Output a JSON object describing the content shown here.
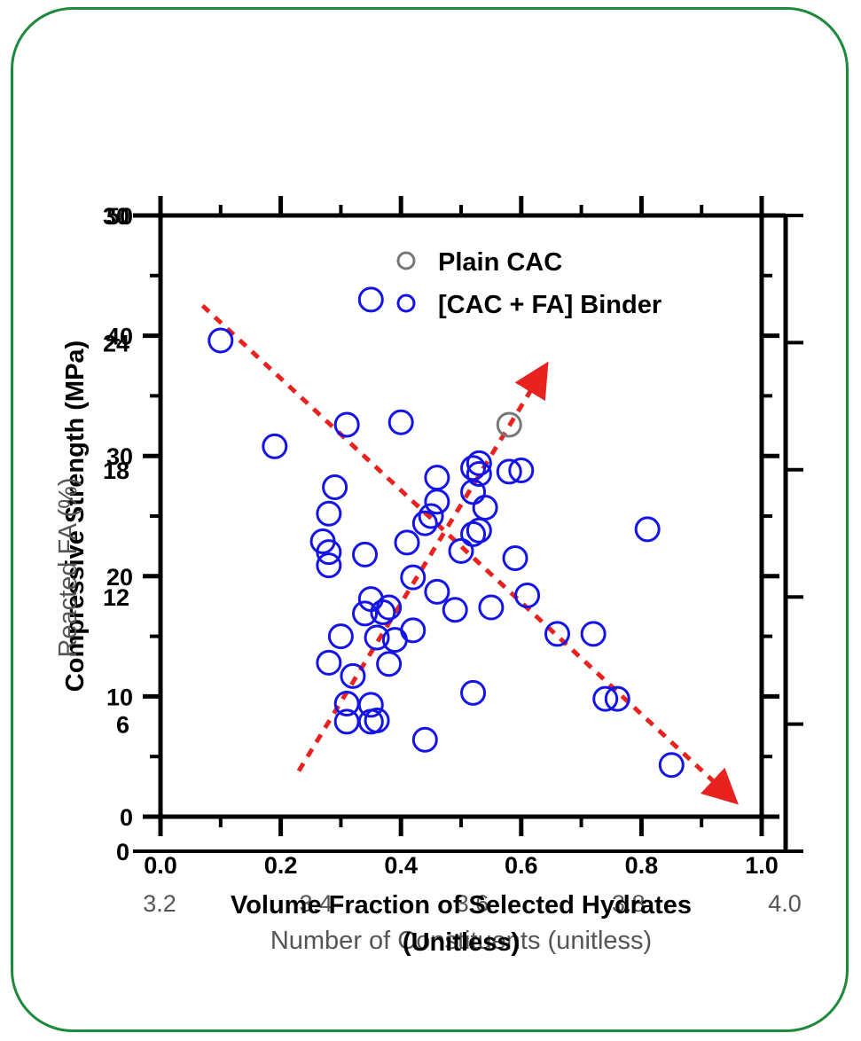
{
  "chart_data": {
    "type": "scatter",
    "bottom_axis": {
      "label": "Volume Fraction of Selected Hydrates",
      "label_line2": "(Unitless)",
      "range": [
        0.0,
        1.0
      ],
      "ticks": [
        "0.0",
        "0.2",
        "0.4",
        "0.6",
        "0.8",
        "1.0"
      ]
    },
    "bottom_axis_secondary": {
      "label": "Number of Constituents (unitless)",
      "range": [
        3.2,
        4.0
      ],
      "ticks": [
        "3.2",
        "3.4",
        "3.6",
        "3.8",
        "4.0"
      ]
    },
    "left_axis": {
      "label": "Compressive Strength (MPa)",
      "range": [
        0,
        50
      ],
      "ticks": [
        "0",
        "10",
        "20",
        "30",
        "40",
        "50"
      ]
    },
    "left_axis_secondary": {
      "label": "Reacted FA (%)",
      "range": [
        0,
        30
      ],
      "ticks": [
        "0",
        "6",
        "12",
        "18",
        "24",
        "30"
      ]
    },
    "legend": {
      "position": "top-center",
      "items": [
        {
          "label": "Plain CAC",
          "color": "#777777"
        },
        {
          "label": "[CAC + FA] Binder",
          "color": "#1414e6"
        }
      ]
    },
    "series": [
      {
        "name": "Plain CAC",
        "color": "#777777",
        "points": [
          [
            0.58,
            32.6
          ]
        ]
      },
      {
        "name": "[CAC + FA] Binder",
        "color": "#1414e6",
        "points": [
          [
            0.1,
            39.6
          ],
          [
            0.19,
            30.8
          ],
          [
            0.31,
            32.6
          ],
          [
            0.4,
            32.8
          ],
          [
            0.35,
            43.0
          ],
          [
            0.29,
            27.4
          ],
          [
            0.28,
            25.2
          ],
          [
            0.27,
            22.9
          ],
          [
            0.28,
            22.0
          ],
          [
            0.28,
            20.9
          ],
          [
            0.34,
            21.8
          ],
          [
            0.3,
            15.0
          ],
          [
            0.28,
            12.8
          ],
          [
            0.32,
            11.7
          ],
          [
            0.31,
            9.4
          ],
          [
            0.31,
            7.9
          ],
          [
            0.35,
            9.3
          ],
          [
            0.35,
            7.9
          ],
          [
            0.36,
            8.0
          ],
          [
            0.44,
            6.4
          ],
          [
            0.34,
            16.9
          ],
          [
            0.35,
            18.1
          ],
          [
            0.37,
            17.0
          ],
          [
            0.38,
            17.4
          ],
          [
            0.36,
            14.9
          ],
          [
            0.38,
            12.7
          ],
          [
            0.39,
            14.7
          ],
          [
            0.42,
            15.5
          ],
          [
            0.41,
            22.8
          ],
          [
            0.42,
            19.9
          ],
          [
            0.44,
            24.4
          ],
          [
            0.45,
            25.0
          ],
          [
            0.46,
            26.2
          ],
          [
            0.46,
            28.2
          ],
          [
            0.46,
            18.7
          ],
          [
            0.49,
            17.2
          ],
          [
            0.5,
            22.1
          ],
          [
            0.52,
            27.0
          ],
          [
            0.52,
            10.3
          ],
          [
            0.52,
            29.0
          ],
          [
            0.53,
            28.5
          ],
          [
            0.53,
            29.4
          ],
          [
            0.52,
            23.5
          ],
          [
            0.53,
            23.8
          ],
          [
            0.54,
            25.7
          ],
          [
            0.55,
            17.4
          ],
          [
            0.58,
            28.7
          ],
          [
            0.6,
            28.8
          ],
          [
            0.59,
            21.5
          ],
          [
            0.61,
            18.4
          ],
          [
            0.66,
            15.2
          ],
          [
            0.72,
            15.2
          ],
          [
            0.74,
            9.8
          ],
          [
            0.76,
            9.8
          ],
          [
            0.81,
            23.9
          ],
          [
            0.85,
            4.3
          ]
        ]
      }
    ],
    "trend_lines": [
      {
        "color": "#e8231f",
        "from": [
          0.07,
          42.5
        ],
        "to": [
          0.94,
          2.0
        ]
      },
      {
        "color": "#e8231f",
        "from": [
          0.23,
          3.8
        ],
        "to": [
          0.63,
          36.6
        ]
      }
    ]
  }
}
